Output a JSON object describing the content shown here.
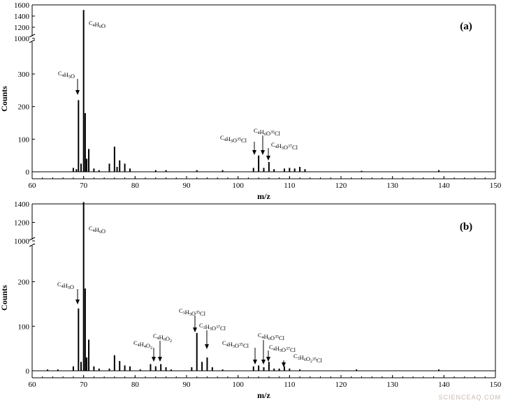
{
  "watermark": "SCIENCEAQ.COM",
  "chart_data": [
    {
      "type": "bar",
      "panel_label": "(a)",
      "xlabel": "m/z",
      "ylabel": "Counts",
      "xlim": [
        60,
        150
      ],
      "x_ticks": [
        60,
        70,
        80,
        90,
        100,
        110,
        120,
        130,
        140,
        150
      ],
      "y_ticks_lower": [
        0,
        100,
        200,
        300
      ],
      "y_ticks_upper": [
        1000,
        1200,
        1400,
        1600
      ],
      "y_break": [
        330,
        1000
      ],
      "grid": false,
      "peaks": [
        {
          "x": 68,
          "y": 12
        },
        {
          "x": 68.6,
          "y": 8
        },
        {
          "x": 69,
          "y": 220
        },
        {
          "x": 69.5,
          "y": 25
        },
        {
          "x": 70,
          "y": 1510
        },
        {
          "x": 70.3,
          "y": 180
        },
        {
          "x": 70.6,
          "y": 40
        },
        {
          "x": 71,
          "y": 70
        },
        {
          "x": 72,
          "y": 10
        },
        {
          "x": 73,
          "y": 5
        },
        {
          "x": 75,
          "y": 25
        },
        {
          "x": 76,
          "y": 77
        },
        {
          "x": 76.5,
          "y": 15
        },
        {
          "x": 77,
          "y": 35
        },
        {
          "x": 78,
          "y": 25
        },
        {
          "x": 79,
          "y": 10
        },
        {
          "x": 84,
          "y": 5
        },
        {
          "x": 86,
          "y": 5
        },
        {
          "x": 92,
          "y": 5
        },
        {
          "x": 97,
          "y": 5
        },
        {
          "x": 103,
          "y": 12
        },
        {
          "x": 104,
          "y": 50
        },
        {
          "x": 105,
          "y": 12
        },
        {
          "x": 106,
          "y": 30
        },
        {
          "x": 107,
          "y": 8
        },
        {
          "x": 109,
          "y": 10
        },
        {
          "x": 110,
          "y": 12
        },
        {
          "x": 111,
          "y": 10
        },
        {
          "x": 112,
          "y": 15
        },
        {
          "x": 113,
          "y": 8
        },
        {
          "x": 124,
          "y": 3
        },
        {
          "x": 139,
          "y": 5
        }
      ],
      "annotations": [
        {
          "text": "C4H6O",
          "x": 70
        },
        {
          "text": "C4H5O",
          "x": 69
        },
        {
          "text": "C4H5O35Cl",
          "x": 104
        },
        {
          "text": "C4H6O35Cl",
          "x": 105
        },
        {
          "text": "C4H5O37Cl",
          "x": 106
        }
      ]
    },
    {
      "type": "bar",
      "panel_label": "(b)",
      "xlabel": "m/z",
      "ylabel": "Counts",
      "xlim": [
        60,
        150
      ],
      "x_ticks": [
        60,
        70,
        80,
        90,
        100,
        110,
        120,
        130,
        140,
        150
      ],
      "y_ticks_lower": [
        0,
        100,
        200
      ],
      "y_ticks_upper": [
        1000,
        1200,
        1400
      ],
      "y_break": [
        240,
        1000
      ],
      "grid": false,
      "peaks": [
        {
          "x": 63,
          "y": 3
        },
        {
          "x": 65,
          "y": 3
        },
        {
          "x": 68,
          "y": 10
        },
        {
          "x": 69,
          "y": 140
        },
        {
          "x": 69.5,
          "y": 20
        },
        {
          "x": 70,
          "y": 1420
        },
        {
          "x": 70.3,
          "y": 185
        },
        {
          "x": 70.6,
          "y": 30
        },
        {
          "x": 71,
          "y": 70
        },
        {
          "x": 72,
          "y": 10
        },
        {
          "x": 73,
          "y": 5
        },
        {
          "x": 75,
          "y": 5
        },
        {
          "x": 76,
          "y": 35
        },
        {
          "x": 77,
          "y": 22
        },
        {
          "x": 78,
          "y": 12
        },
        {
          "x": 79,
          "y": 10
        },
        {
          "x": 81,
          "y": 3
        },
        {
          "x": 83,
          "y": 15
        },
        {
          "x": 84,
          "y": 10
        },
        {
          "x": 85,
          "y": 15
        },
        {
          "x": 86,
          "y": 8
        },
        {
          "x": 87,
          "y": 3
        },
        {
          "x": 91,
          "y": 8
        },
        {
          "x": 92,
          "y": 85
        },
        {
          "x": 93,
          "y": 20
        },
        {
          "x": 94,
          "y": 30
        },
        {
          "x": 95,
          "y": 8
        },
        {
          "x": 97,
          "y": 3
        },
        {
          "x": 103,
          "y": 10
        },
        {
          "x": 104,
          "y": 12
        },
        {
          "x": 105,
          "y": 8
        },
        {
          "x": 106,
          "y": 20
        },
        {
          "x": 107,
          "y": 5
        },
        {
          "x": 108,
          "y": 5
        },
        {
          "x": 109,
          "y": 10
        },
        {
          "x": 110,
          "y": 5
        },
        {
          "x": 112,
          "y": 3
        },
        {
          "x": 123,
          "y": 3
        },
        {
          "x": 139,
          "y": 3
        }
      ],
      "annotations": [
        {
          "text": "C4H6O",
          "x": 70
        },
        {
          "text": "C4H5O",
          "x": 69
        },
        {
          "text": "C4H4O2",
          "x": 84
        },
        {
          "text": "C4H6O2",
          "x": 85
        },
        {
          "text": "C3H5O35Cl",
          "x": 92
        },
        {
          "text": "C3H5O37Cl",
          "x": 94
        },
        {
          "text": "C4H5O35Cl",
          "x": 104
        },
        {
          "text": "C4H6O35Cl",
          "x": 105
        },
        {
          "text": "C4H5O37Cl",
          "x": 106
        },
        {
          "text": "C3H6O235Cl",
          "x": 109
        }
      ]
    }
  ]
}
